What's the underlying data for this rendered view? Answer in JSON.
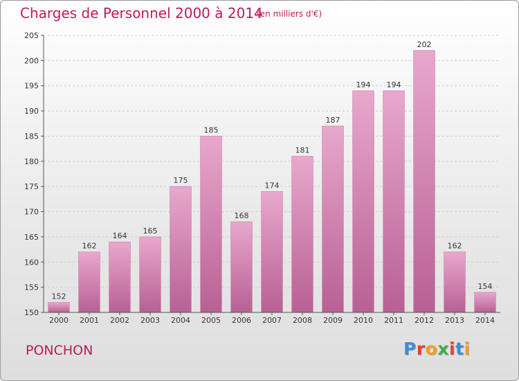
{
  "header": {
    "title": "Charges de Personnel 2000 à 2014",
    "subtitle": "(en milliers d'€)"
  },
  "footer": {
    "commune": "PONCHON",
    "logo": "Proxiti",
    "logo_colors": [
      "#3a8fd9",
      "#e2413b",
      "#f0a020",
      "#3cae4a",
      "#e2413b",
      "#3a8fd9",
      "#f0a020"
    ]
  },
  "colors": {
    "bar_light": "#e8a8cc",
    "bar_dark": "#b86094",
    "accent": "#c2185b"
  },
  "chart_data": {
    "type": "bar",
    "categories": [
      "2000",
      "2001",
      "2002",
      "2003",
      "2004",
      "2005",
      "2006",
      "2007",
      "2008",
      "2009",
      "2010",
      "2011",
      "2012",
      "2013",
      "2014"
    ],
    "values": [
      152,
      162,
      164,
      165,
      175,
      185,
      168,
      174,
      181,
      187,
      194,
      194,
      202,
      162,
      154
    ],
    "ylim": [
      150,
      205
    ],
    "yticks": [
      150,
      155,
      160,
      165,
      170,
      175,
      180,
      185,
      190,
      195,
      200,
      205
    ],
    "grid": true,
    "data_labels": true
  }
}
